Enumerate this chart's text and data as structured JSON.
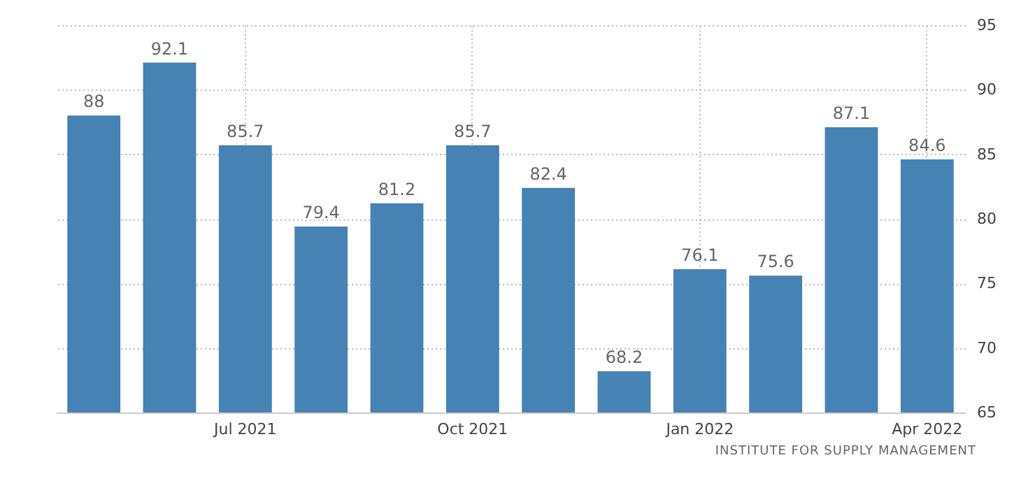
{
  "chart_data": {
    "type": "bar",
    "categories": [
      null,
      null,
      "Jul 2021",
      null,
      null,
      "Oct 2021",
      null,
      null,
      "Jan 2022",
      null,
      null,
      "Apr 2022"
    ],
    "values": [
      88,
      92.1,
      85.7,
      79.4,
      81.2,
      85.7,
      82.4,
      68.2,
      76.1,
      75.6,
      87.1,
      84.6
    ],
    "color": "#4682b4",
    "ylim": [
      65,
      95
    ],
    "yticks": [
      65,
      70,
      75,
      80,
      85,
      90,
      95
    ],
    "grid": true,
    "data_labels": true,
    "annotations": [
      "INSTITUTE FOR SUPPLY MANAGEMENT"
    ]
  }
}
